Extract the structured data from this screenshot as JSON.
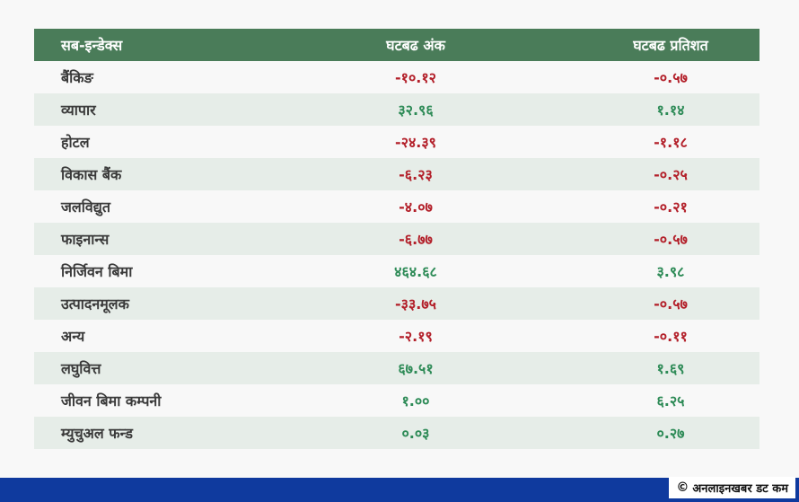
{
  "header": {
    "col1": "सब-इन्डेक्स",
    "col2": "घटबढ अंक",
    "col3": "घटबढ प्रतिशत"
  },
  "rows": [
    {
      "name": "बैंकिङ",
      "points": "-१०.१२",
      "percent": "-०.५७",
      "sign": "neg"
    },
    {
      "name": "व्यापार",
      "points": "३२.९६",
      "percent": "१.१४",
      "sign": "pos"
    },
    {
      "name": "होटल",
      "points": "-२४.३९",
      "percent": "-१.१८",
      "sign": "neg"
    },
    {
      "name": "विकास बैंक",
      "points": "-६.२३",
      "percent": "-०.२५",
      "sign": "neg"
    },
    {
      "name": "जलविद्युत",
      "points": "-४.०७",
      "percent": "-०.२१",
      "sign": "neg"
    },
    {
      "name": "फाइनान्स",
      "points": "-६.७७",
      "percent": "-०.५७",
      "sign": "neg"
    },
    {
      "name": "निर्जिवन बिमा",
      "points": "४६४.६८",
      "percent": "३.९८",
      "sign": "pos"
    },
    {
      "name": "उत्पादनमूलक",
      "points": "-३३.७५",
      "percent": "-०.५७",
      "sign": "neg"
    },
    {
      "name": "अन्य",
      "points": "-२.१९",
      "percent": "-०.११",
      "sign": "neg"
    },
    {
      "name": "लघुवित्त",
      "points": "६७.५१",
      "percent": "१.६९",
      "sign": "pos"
    },
    {
      "name": "जीवन बिमा कम्पनी",
      "points": "१.००",
      "percent": "६.२५",
      "sign": "pos"
    },
    {
      "name": "म्युचुअल फन्ड",
      "points": "०.०३",
      "percent": "०.२७",
      "sign": "pos"
    }
  ],
  "footer": {
    "copyright_symbol": "©",
    "credit": "अनलाइनखबर डट कम"
  },
  "colors": {
    "header_bg": "#4a7c59",
    "negative": "#b3202a",
    "positive": "#2e8b57",
    "footer_bar": "#0f3a9e"
  }
}
